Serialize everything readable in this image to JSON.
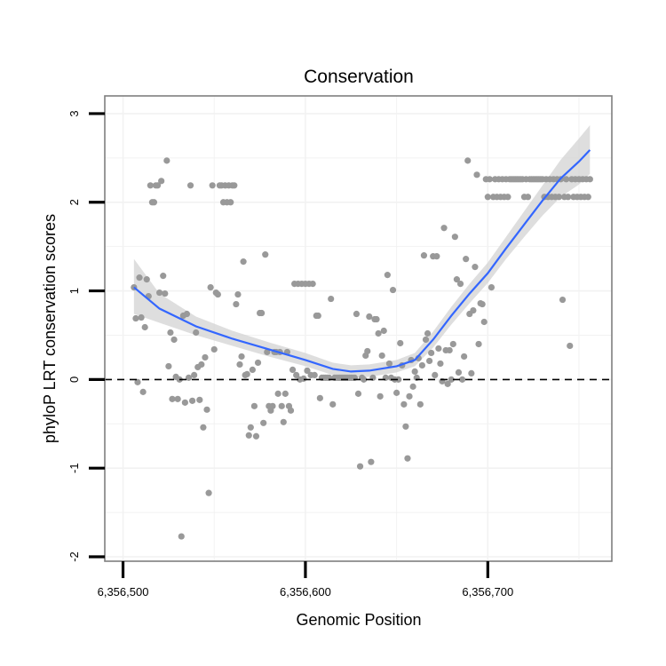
{
  "chart_data": {
    "type": "scatter",
    "title": "Conservation",
    "xlabel": "Genomic Position",
    "ylabel": "phyloP LRT conservation scores",
    "xlim": [
      6356490,
      6356768
    ],
    "ylim": [
      -2.05,
      3.2
    ],
    "x_ticks": [
      6356500,
      6356600,
      6356700
    ],
    "x_tick_labels": [
      "6,356,500",
      "6,356,600",
      "6,356,700"
    ],
    "y_ticks": [
      -2,
      -1,
      0,
      1,
      2,
      3
    ],
    "y_tick_labels": [
      "-2",
      "-1",
      "0",
      "1",
      "2",
      "3"
    ],
    "grid": true,
    "reference_line": {
      "y": 0,
      "style": "dashed"
    },
    "colors": {
      "points": "#999999",
      "smooth": "#3366ff",
      "band": "#d3d3d3",
      "border": "#7f7f7f",
      "grid": "#f2f2f2"
    },
    "series": [
      {
        "type": "scatter",
        "points": [
          [
            6356506,
            1.04
          ],
          [
            6356507,
            0.69
          ],
          [
            6356508,
            -0.03
          ],
          [
            6356509,
            1.15
          ],
          [
            6356510,
            0.7
          ],
          [
            6356511,
            -0.14
          ],
          [
            6356512,
            0.59
          ],
          [
            6356513,
            1.13
          ],
          [
            6356514,
            0.94
          ],
          [
            6356515,
            2.19
          ],
          [
            6356516,
            2.0
          ],
          [
            6356517,
            2.0
          ],
          [
            6356518,
            2.19
          ],
          [
            6356519,
            2.19
          ],
          [
            6356520,
            0.98
          ],
          [
            6356521,
            2.24
          ],
          [
            6356522,
            1.17
          ],
          [
            6356523,
            0.97
          ],
          [
            6356524,
            2.47
          ],
          [
            6356525,
            0.15
          ],
          [
            6356526,
            0.53
          ],
          [
            6356527,
            -0.22
          ],
          [
            6356528,
            0.45
          ],
          [
            6356529,
            0.03
          ],
          [
            6356530,
            -0.22
          ],
          [
            6356531,
            0.0
          ],
          [
            6356532,
            -1.77
          ],
          [
            6356533,
            0.72
          ],
          [
            6356534,
            -0.26
          ],
          [
            6356535,
            0.74
          ],
          [
            6356536,
            0.02
          ],
          [
            6356537,
            2.19
          ],
          [
            6356538,
            -0.24
          ],
          [
            6356539,
            0.05
          ],
          [
            6356540,
            0.53
          ],
          [
            6356541,
            0.14
          ],
          [
            6356542,
            -0.23
          ],
          [
            6356543,
            0.17
          ],
          [
            6356544,
            -0.54
          ],
          [
            6356545,
            0.25
          ],
          [
            6356546,
            -0.34
          ],
          [
            6356547,
            -1.28
          ],
          [
            6356548,
            1.04
          ],
          [
            6356549,
            2.19
          ],
          [
            6356550,
            0.34
          ],
          [
            6356551,
            0.98
          ],
          [
            6356552,
            0.96
          ],
          [
            6356553,
            2.19
          ],
          [
            6356554,
            2.19
          ],
          [
            6356555,
            2.0
          ],
          [
            6356556,
            2.19
          ],
          [
            6356557,
            2.0
          ],
          [
            6356558,
            2.19
          ],
          [
            6356559,
            2.0
          ],
          [
            6356560,
            2.19
          ],
          [
            6356561,
            2.19
          ],
          [
            6356562,
            0.85
          ],
          [
            6356563,
            0.96
          ],
          [
            6356564,
            0.17
          ],
          [
            6356565,
            0.26
          ],
          [
            6356566,
            1.33
          ],
          [
            6356567,
            0.05
          ],
          [
            6356568,
            0.06
          ],
          [
            6356569,
            -0.63
          ],
          [
            6356570,
            -0.54
          ],
          [
            6356571,
            0.11
          ],
          [
            6356572,
            -0.3
          ],
          [
            6356573,
            -0.64
          ],
          [
            6356574,
            0.19
          ],
          [
            6356575,
            0.75
          ],
          [
            6356576,
            0.75
          ],
          [
            6356577,
            -0.49
          ],
          [
            6356578,
            1.41
          ],
          [
            6356579,
            0.31
          ],
          [
            6356580,
            -0.3
          ],
          [
            6356581,
            -0.35
          ],
          [
            6356582,
            -0.3
          ],
          [
            6356583,
            0.31
          ],
          [
            6356584,
            0.31
          ],
          [
            6356585,
            -0.16
          ],
          [
            6356586,
            0.31
          ],
          [
            6356587,
            -0.3
          ],
          [
            6356588,
            -0.48
          ],
          [
            6356589,
            -0.16
          ],
          [
            6356590,
            0.31
          ],
          [
            6356591,
            -0.3
          ],
          [
            6356592,
            -0.35
          ],
          [
            6356593,
            0.11
          ],
          [
            6356594,
            1.08
          ],
          [
            6356595,
            0.05
          ],
          [
            6356596,
            1.08
          ],
          [
            6356597,
            0.0
          ],
          [
            6356598,
            1.08
          ],
          [
            6356599,
            0.01
          ],
          [
            6356600,
            1.08
          ],
          [
            6356601,
            0.1
          ],
          [
            6356602,
            1.08
          ],
          [
            6356603,
            0.05
          ],
          [
            6356604,
            1.08
          ],
          [
            6356605,
            0.05
          ],
          [
            6356606,
            0.72
          ],
          [
            6356607,
            0.72
          ],
          [
            6356608,
            -0.21
          ],
          [
            6356609,
            0.02
          ],
          [
            6356610,
            0.02
          ],
          [
            6356611,
            0.02
          ],
          [
            6356612,
            0.02
          ],
          [
            6356613,
            0.02
          ],
          [
            6356614,
            0.91
          ],
          [
            6356615,
            -0.28
          ],
          [
            6356616,
            0.02
          ],
          [
            6356617,
            0.02
          ],
          [
            6356618,
            0.02
          ],
          [
            6356619,
            0.02
          ],
          [
            6356620,
            0.02
          ],
          [
            6356621,
            0.02
          ],
          [
            6356622,
            0.02
          ],
          [
            6356623,
            0.02
          ],
          [
            6356624,
            0.02
          ],
          [
            6356625,
            0.02
          ],
          [
            6356626,
            0.02
          ],
          [
            6356627,
            0.02
          ],
          [
            6356628,
            0.74
          ],
          [
            6356629,
            -0.16
          ],
          [
            6356630,
            -0.98
          ],
          [
            6356631,
            0.02
          ],
          [
            6356632,
            0.0
          ],
          [
            6356633,
            0.27
          ],
          [
            6356634,
            0.32
          ],
          [
            6356635,
            0.71
          ],
          [
            6356636,
            -0.93
          ],
          [
            6356637,
            0.02
          ],
          [
            6356638,
            0.68
          ],
          [
            6356639,
            0.68
          ],
          [
            6356640,
            0.52
          ],
          [
            6356641,
            -0.19
          ],
          [
            6356642,
            0.27
          ],
          [
            6356643,
            0.55
          ],
          [
            6356644,
            0.02
          ],
          [
            6356645,
            1.18
          ],
          [
            6356646,
            0.18
          ],
          [
            6356647,
            0.02
          ],
          [
            6356648,
            1.01
          ],
          [
            6356649,
            0.0
          ],
          [
            6356650,
            -0.15
          ],
          [
            6356651,
            0.0
          ],
          [
            6356652,
            0.41
          ],
          [
            6356653,
            0.16
          ],
          [
            6356654,
            -0.28
          ],
          [
            6356655,
            -0.53
          ],
          [
            6356656,
            -0.89
          ],
          [
            6356657,
            -0.19
          ],
          [
            6356658,
            0.22
          ],
          [
            6356659,
            -0.08
          ],
          [
            6356660,
            0.09
          ],
          [
            6356661,
            0.02
          ],
          [
            6356662,
            0.24
          ],
          [
            6356663,
            -0.28
          ],
          [
            6356664,
            0.16
          ],
          [
            6356665,
            1.4
          ],
          [
            6356666,
            0.45
          ],
          [
            6356667,
            0.52
          ],
          [
            6356668,
            0.21
          ],
          [
            6356669,
            0.3
          ],
          [
            6356670,
            1.39
          ],
          [
            6356671,
            0.05
          ],
          [
            6356672,
            1.39
          ],
          [
            6356673,
            0.35
          ],
          [
            6356674,
            0.18
          ],
          [
            6356675,
            -0.02
          ],
          [
            6356676,
            1.71
          ],
          [
            6356677,
            0.33
          ],
          [
            6356678,
            -0.05
          ],
          [
            6356679,
            0.33
          ],
          [
            6356680,
            0.0
          ],
          [
            6356681,
            0.4
          ],
          [
            6356682,
            1.61
          ],
          [
            6356683,
            1.13
          ],
          [
            6356684,
            0.08
          ],
          [
            6356685,
            1.08
          ],
          [
            6356686,
            0.0
          ],
          [
            6356687,
            0.26
          ],
          [
            6356688,
            1.36
          ],
          [
            6356689,
            2.47
          ],
          [
            6356690,
            0.74
          ],
          [
            6356691,
            0.07
          ],
          [
            6356692,
            0.78
          ],
          [
            6356693,
            1.27
          ],
          [
            6356694,
            2.31
          ],
          [
            6356695,
            0.4
          ],
          [
            6356696,
            0.86
          ],
          [
            6356697,
            0.85
          ],
          [
            6356698,
            0.65
          ],
          [
            6356699,
            2.26
          ],
          [
            6356700,
            2.06
          ],
          [
            6356701,
            2.26
          ],
          [
            6356702,
            1.04
          ],
          [
            6356703,
            2.06
          ],
          [
            6356704,
            2.26
          ],
          [
            6356705,
            2.06
          ],
          [
            6356706,
            2.26
          ],
          [
            6356707,
            2.06
          ],
          [
            6356708,
            2.26
          ],
          [
            6356709,
            2.06
          ],
          [
            6356710,
            2.26
          ],
          [
            6356711,
            2.06
          ],
          [
            6356712,
            2.26
          ],
          [
            6356713,
            2.26
          ],
          [
            6356714,
            2.26
          ],
          [
            6356715,
            2.26
          ],
          [
            6356716,
            2.26
          ],
          [
            6356717,
            2.26
          ],
          [
            6356718,
            2.26
          ],
          [
            6356719,
            2.26
          ],
          [
            6356720,
            2.06
          ],
          [
            6356721,
            2.26
          ],
          [
            6356722,
            2.06
          ],
          [
            6356723,
            2.26
          ],
          [
            6356724,
            2.26
          ],
          [
            6356725,
            2.26
          ],
          [
            6356726,
            2.26
          ],
          [
            6356727,
            2.26
          ],
          [
            6356728,
            2.26
          ],
          [
            6356729,
            2.26
          ],
          [
            6356730,
            2.26
          ],
          [
            6356731,
            2.06
          ],
          [
            6356732,
            2.26
          ],
          [
            6356733,
            2.06
          ],
          [
            6356734,
            2.26
          ],
          [
            6356735,
            2.06
          ],
          [
            6356736,
            2.26
          ],
          [
            6356737,
            2.06
          ],
          [
            6356738,
            2.26
          ],
          [
            6356739,
            2.06
          ],
          [
            6356740,
            2.26
          ],
          [
            6356741,
            0.9
          ],
          [
            6356742,
            2.06
          ],
          [
            6356743,
            2.26
          ],
          [
            6356744,
            2.06
          ],
          [
            6356745,
            0.38
          ],
          [
            6356746,
            2.26
          ],
          [
            6356747,
            2.06
          ],
          [
            6356748,
            2.26
          ],
          [
            6356749,
            2.06
          ],
          [
            6356750,
            2.26
          ],
          [
            6356751,
            2.06
          ],
          [
            6356752,
            2.26
          ],
          [
            6356753,
            2.06
          ],
          [
            6356754,
            2.26
          ],
          [
            6356755,
            2.06
          ],
          [
            6356756,
            2.26
          ]
        ]
      },
      {
        "type": "line",
        "points": [
          [
            6356506,
            1.04
          ],
          [
            6356520,
            0.8
          ],
          [
            6356540,
            0.6
          ],
          [
            6356560,
            0.46
          ],
          [
            6356580,
            0.34
          ],
          [
            6356600,
            0.22
          ],
          [
            6356615,
            0.12
          ],
          [
            6356625,
            0.09
          ],
          [
            6356635,
            0.1
          ],
          [
            6356650,
            0.15
          ],
          [
            6356660,
            0.22
          ],
          [
            6356670,
            0.45
          ],
          [
            6356680,
            0.72
          ],
          [
            6356690,
            0.97
          ],
          [
            6356700,
            1.2
          ],
          [
            6356710,
            1.48
          ],
          [
            6356720,
            1.75
          ],
          [
            6356730,
            2.02
          ],
          [
            6356740,
            2.27
          ],
          [
            6356750,
            2.46
          ],
          [
            6356756,
            2.59
          ]
        ]
      },
      {
        "type": "band",
        "x": [
          6356506,
          6356520,
          6356540,
          6356560,
          6356580,
          6356600,
          6356615,
          6356625,
          6356635,
          6356650,
          6356660,
          6356670,
          6356680,
          6356690,
          6356700,
          6356710,
          6356720,
          6356730,
          6356740,
          6356750,
          6356756
        ],
        "lower": [
          0.74,
          0.64,
          0.5,
          0.38,
          0.26,
          0.15,
          0.05,
          0.02,
          0.03,
          0.08,
          0.15,
          0.36,
          0.62,
          0.86,
          1.09,
          1.36,
          1.61,
          1.85,
          2.06,
          2.2,
          2.32
        ],
        "upper": [
          1.36,
          0.97,
          0.71,
          0.55,
          0.42,
          0.3,
          0.19,
          0.16,
          0.17,
          0.22,
          0.3,
          0.54,
          0.82,
          1.08,
          1.32,
          1.61,
          1.9,
          2.19,
          2.48,
          2.72,
          2.87
        ]
      }
    ]
  }
}
